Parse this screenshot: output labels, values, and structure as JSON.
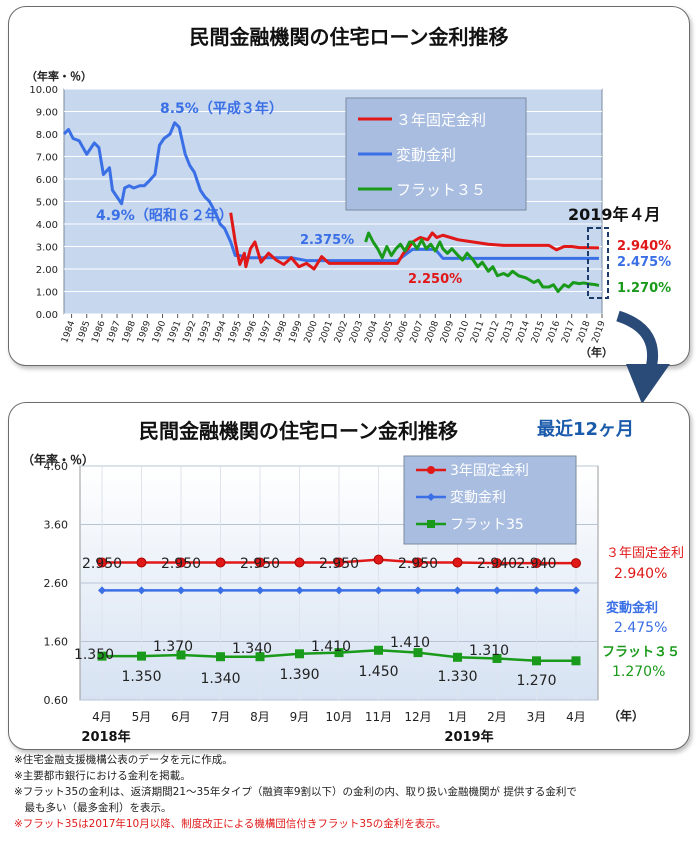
{
  "colors": {
    "fixed": "#e01818",
    "variable": "#3a6fe6",
    "flat": "#1a9a1a",
    "plot_bg": "#c6d7ee",
    "legend_bg": "#a8bde0"
  },
  "chart_data": [
    {
      "type": "line",
      "title": "民間金融機関の住宅ローン金利推移",
      "ylabel": "（年率・％）",
      "xlabel": "（年）",
      "ylim": [
        0,
        10
      ],
      "yticks": [
        "10.00",
        "9.00",
        "8.00",
        "7.00",
        "6.00",
        "5.00",
        "4.00",
        "3.00",
        "2.00",
        "1.00",
        "0.00"
      ],
      "xticks": [
        "1984",
        "1985",
        "1986",
        "1987",
        "1988",
        "1989",
        "1990",
        "1991",
        "1992",
        "1993",
        "1994",
        "1995",
        "1996",
        "1997",
        "1998",
        "1999",
        "2000",
        "2001",
        "2002",
        "2003",
        "2004",
        "2005",
        "2006",
        "2007",
        "2008",
        "2009",
        "2010",
        "2011",
        "2012",
        "2013",
        "2014",
        "2015",
        "2016",
        "2017",
        "2018",
        "2019"
      ],
      "legend": [
        "３年固定金利",
        "変動金利",
        "フラット３５"
      ],
      "legend_position": "top-right",
      "series": [
        {
          "name": "変動金利",
          "x": [
            1984.0,
            1984.3,
            1984.6,
            1985.0,
            1985.5,
            1986.0,
            1986.3,
            1986.6,
            1987.0,
            1987.2,
            1987.5,
            1987.8,
            1988.0,
            1988.3,
            1988.6,
            1989.0,
            1989.3,
            1989.6,
            1990.0,
            1990.3,
            1990.6,
            1991.0,
            1991.3,
            1991.6,
            1992.0,
            1992.3,
            1992.6,
            1993.0,
            1993.3,
            1993.6,
            1994.0,
            1994.3,
            1994.6,
            1995.0,
            1995.3,
            1995.6,
            1996.0,
            1997.0,
            1998.0,
            1999.0,
            2000.0,
            2001.0,
            2002.0,
            2003.0,
            2004.0,
            2005.0,
            2006.0,
            2006.5,
            2007.0,
            2007.5,
            2008.0,
            2008.5,
            2009.0,
            2010.0,
            2012.0,
            2014.0,
            2016.0,
            2018.0,
            2019.3
          ],
          "y": [
            8.0,
            8.2,
            7.8,
            7.7,
            7.1,
            7.6,
            7.4,
            6.2,
            6.5,
            5.5,
            5.2,
            4.9,
            5.6,
            5.7,
            5.6,
            5.7,
            5.7,
            5.9,
            6.2,
            7.5,
            7.8,
            8.0,
            8.5,
            8.3,
            7.1,
            6.6,
            6.3,
            5.5,
            5.2,
            5.0,
            4.5,
            4.0,
            3.8,
            3.2,
            2.6,
            2.6,
            2.5,
            2.5,
            2.5,
            2.5,
            2.375,
            2.375,
            2.375,
            2.375,
            2.375,
            2.375,
            2.375,
            2.625,
            2.875,
            2.875,
            2.875,
            2.875,
            2.475,
            2.475,
            2.475,
            2.475,
            2.475,
            2.475,
            2.475
          ]
        },
        {
          "name": "３年固定金利",
          "x": [
            1995.0,
            1995.3,
            1995.6,
            1995.9,
            1996.0,
            1996.3,
            1996.6,
            1997.0,
            1997.5,
            1998.0,
            1998.5,
            1999.0,
            1999.5,
            2000.0,
            2000.5,
            2001.0,
            2001.5,
            2002.0,
            2003.0,
            2004.0,
            2005.0,
            2006.0,
            2006.4,
            2006.7,
            2007.0,
            2007.5,
            2008.0,
            2008.3,
            2008.6,
            2009.0,
            2010.0,
            2011.0,
            2012.0,
            2013.0,
            2014.0,
            2015.0,
            2016.0,
            2016.5,
            2017.0,
            2017.5,
            2018.0,
            2018.4,
            2019.3
          ],
          "y": [
            4.5,
            3.2,
            2.2,
            2.7,
            2.1,
            2.9,
            3.2,
            2.3,
            2.7,
            2.4,
            2.2,
            2.5,
            2.1,
            2.25,
            2.0,
            2.55,
            2.25,
            2.25,
            2.25,
            2.25,
            2.25,
            2.25,
            2.7,
            2.9,
            3.2,
            3.4,
            3.3,
            3.6,
            3.4,
            3.5,
            3.3,
            3.2,
            3.1,
            3.05,
            3.05,
            3.05,
            3.05,
            2.85,
            3.0,
            3.0,
            2.95,
            2.95,
            2.94
          ]
        },
        {
          "name": "フラット３５",
          "x": [
            2003.9,
            2004.1,
            2004.4,
            2004.7,
            2005.0,
            2005.3,
            2005.6,
            2005.9,
            2006.2,
            2006.5,
            2006.8,
            2007.0,
            2007.3,
            2007.6,
            2007.9,
            2008.2,
            2008.5,
            2008.8,
            2009.0,
            2009.3,
            2009.6,
            2010.0,
            2010.3,
            2010.6,
            2011.0,
            2011.3,
            2011.6,
            2012.0,
            2012.3,
            2012.6,
            2013.0,
            2013.3,
            2013.6,
            2014.0,
            2014.5,
            2015.0,
            2015.3,
            2015.6,
            2016.0,
            2016.3,
            2016.6,
            2017.0,
            2017.3,
            2017.6,
            2018.0,
            2018.3,
            2018.6,
            2019.0,
            2019.3
          ],
          "y": [
            3.2,
            3.6,
            3.2,
            2.9,
            2.5,
            3.0,
            2.6,
            2.9,
            3.1,
            2.8,
            3.2,
            3.2,
            2.9,
            3.3,
            2.9,
            3.1,
            2.8,
            3.2,
            2.9,
            2.7,
            2.9,
            2.6,
            2.4,
            2.7,
            2.4,
            2.1,
            2.3,
            1.9,
            2.1,
            1.7,
            1.8,
            1.7,
            1.9,
            1.7,
            1.6,
            1.4,
            1.5,
            1.2,
            1.2,
            1.3,
            1.0,
            1.3,
            1.2,
            1.4,
            1.35,
            1.38,
            1.34,
            1.31,
            1.27
          ]
        }
      ],
      "annotations": [
        {
          "text": "8.5%（平成３年）",
          "x": 1991.1,
          "y": 8.5
        },
        {
          "text": "4.9%（昭和６２年）",
          "x": 1987.8,
          "y": 4.9
        },
        {
          "text": "2.375%",
          "x": 2001.0,
          "y": 2.375
        },
        {
          "text": "2.250%",
          "x": 2005.6,
          "y": 2.25
        }
      ],
      "end_labels": {
        "period": "2019年４月",
        "fixed": "2.940%",
        "variable": "2.475%",
        "flat": "1.270%"
      }
    },
    {
      "type": "line",
      "title": "民間金融機関の住宅ローン金利推移",
      "subtitle": "最近12ヶ月",
      "ylabel": "（年率・％）",
      "xlabel": "（年）",
      "ylim": [
        0.6,
        4.6
      ],
      "yticks": [
        "4.60",
        "3.60",
        "2.60",
        "1.60",
        "0.60"
      ],
      "categories": [
        "4月",
        "5月",
        "6月",
        "7月",
        "8月",
        "9月",
        "10月",
        "11月",
        "12月",
        "1月",
        "2月",
        "3月",
        "4月"
      ],
      "year_labels": [
        "2018年",
        "2019年"
      ],
      "legend": [
        "3年固定金利",
        "変動金利",
        "フラット35"
      ],
      "legend_position": "top-right",
      "series": [
        {
          "name": "3年固定金利",
          "values": [
            2.95,
            2.95,
            2.95,
            2.95,
            2.95,
            2.95,
            2.95,
            3.0,
            2.95,
            2.95,
            2.94,
            2.94,
            2.94
          ]
        },
        {
          "name": "変動金利",
          "values": [
            2.475,
            2.475,
            2.475,
            2.475,
            2.475,
            2.475,
            2.475,
            2.475,
            2.475,
            2.475,
            2.475,
            2.475,
            2.475
          ]
        },
        {
          "name": "フラット35",
          "values": [
            1.35,
            1.35,
            1.37,
            1.34,
            1.34,
            1.39,
            1.41,
            1.45,
            1.41,
            1.33,
            1.31,
            1.27,
            1.27
          ]
        }
      ],
      "data_labels": {
        "fixed": [
          "2.950",
          "2.950",
          "2.950",
          "2.950",
          "2.950",
          "2.940",
          "2.940"
        ],
        "flat_upper": [
          "1.350",
          "1.370",
          "1.340",
          "1.410",
          "1.410",
          "1.310"
        ],
        "flat_lower": [
          "1.350",
          "1.340",
          "1.390",
          "1.450",
          "1.330",
          "1.270"
        ]
      },
      "end_labels": {
        "fixed_name": "３年固定金利",
        "fixed_value": "2.940%",
        "variable_name": "変動金利",
        "variable_value": "2.475%",
        "flat_name": "フラット３５",
        "flat_value": "1.270%"
      }
    }
  ],
  "notes": [
    "※住宅金融支援機構公表のデータを元に作成。",
    "※主要都市銀行における金利を掲載。",
    "※フラット35の金利は、返済期間21～35年タイプ（融資率9割以下）の金利の内、取り扱い金融機関が 提供する金利で",
    "　最も多い（最多金利）を表示。",
    "※フラット35は2017年10月以降、制度改正による機構団信付きフラット35の金利を表示。"
  ]
}
